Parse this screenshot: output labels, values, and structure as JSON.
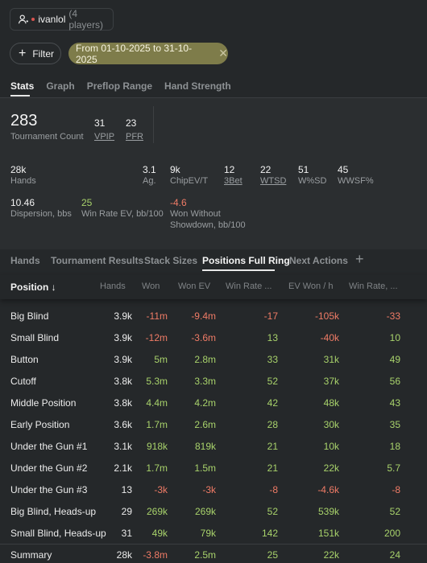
{
  "user": {
    "name": "ivanlol",
    "count": "(4 players)"
  },
  "filter": {
    "label": "Filter",
    "date_range": "From 01-10-2025 to 31-10-2025"
  },
  "top_tabs": [
    "Stats",
    "Graph",
    "Preflop Range",
    "Hand Strength"
  ],
  "stats": {
    "tournament_count": {
      "value": "283",
      "label": "Tournament Count"
    },
    "vpip": {
      "value": "31",
      "label": "VPIP"
    },
    "pfr": {
      "value": "23",
      "label": "PFR"
    },
    "hands": {
      "value": "28k",
      "label": "Hands"
    },
    "ag": {
      "value": "3.1",
      "label": "Ag."
    },
    "chipev": {
      "value": "9k",
      "label": "ChipEV/T"
    },
    "threebet": {
      "value": "12",
      "label": "3Bet"
    },
    "wtsd": {
      "value": "22",
      "label": "WTSD"
    },
    "wsd": {
      "value": "51",
      "label": "W%SD"
    },
    "wwsf": {
      "value": "45",
      "label": "WWSF%"
    },
    "dispersion": {
      "value": "10.46",
      "label": "Dispersion, bbs"
    },
    "winrate_ev": {
      "value": "25",
      "label": "Win Rate EV, bb/100"
    },
    "won_without_sd": {
      "value": "-4.6",
      "label_1": "Won Without",
      "label_2": "Showdown, bb/100"
    }
  },
  "sub_tabs": [
    "Hands",
    "Tournament Results",
    "Stack Sizes",
    "Positions Full Ring",
    "Next Actions"
  ],
  "table": {
    "headers": [
      "Position ↓",
      "Hands",
      "Won",
      "Won EV",
      "Win Rate ...",
      "EV Won / h",
      "Win Rate, ..."
    ],
    "rows": [
      [
        "Big Blind",
        "3.9k",
        "-11m",
        "-9.4m",
        "-17",
        "-105k",
        "-33"
      ],
      [
        "Small Blind",
        "3.9k",
        "-12m",
        "-3.6m",
        "13",
        "-40k",
        "10"
      ],
      [
        "Button",
        "3.9k",
        "5m",
        "2.8m",
        "33",
        "31k",
        "49"
      ],
      [
        "Cutoff",
        "3.8k",
        "5.3m",
        "3.3m",
        "52",
        "37k",
        "56"
      ],
      [
        "Middle Position",
        "3.8k",
        "4.4m",
        "4.2m",
        "42",
        "48k",
        "43"
      ],
      [
        "Early Position",
        "3.6k",
        "1.7m",
        "2.6m",
        "28",
        "30k",
        "35"
      ],
      [
        "Under the Gun #1",
        "3.1k",
        "918k",
        "819k",
        "21",
        "10k",
        "18"
      ],
      [
        "Under the Gun #2",
        "2.1k",
        "1.7m",
        "1.5m",
        "21",
        "22k",
        "5.7"
      ],
      [
        "Under the Gun #3",
        "13",
        "-3k",
        "-3k",
        "-8",
        "-4.6k",
        "-8"
      ],
      [
        "Big Blind, Heads-up",
        "29",
        "269k",
        "269k",
        "52",
        "539k",
        "52"
      ],
      [
        "Small Blind, Heads-up",
        "31",
        "49k",
        "79k",
        "142",
        "151k",
        "200"
      ],
      [
        "Summary",
        "28k",
        "-3.8m",
        "2.5m",
        "25",
        "22k",
        "24"
      ]
    ]
  },
  "colors": {
    "positive": "#a8d26b",
    "negative": "#ef7b66",
    "accent_chip": "#7e7c4a"
  }
}
